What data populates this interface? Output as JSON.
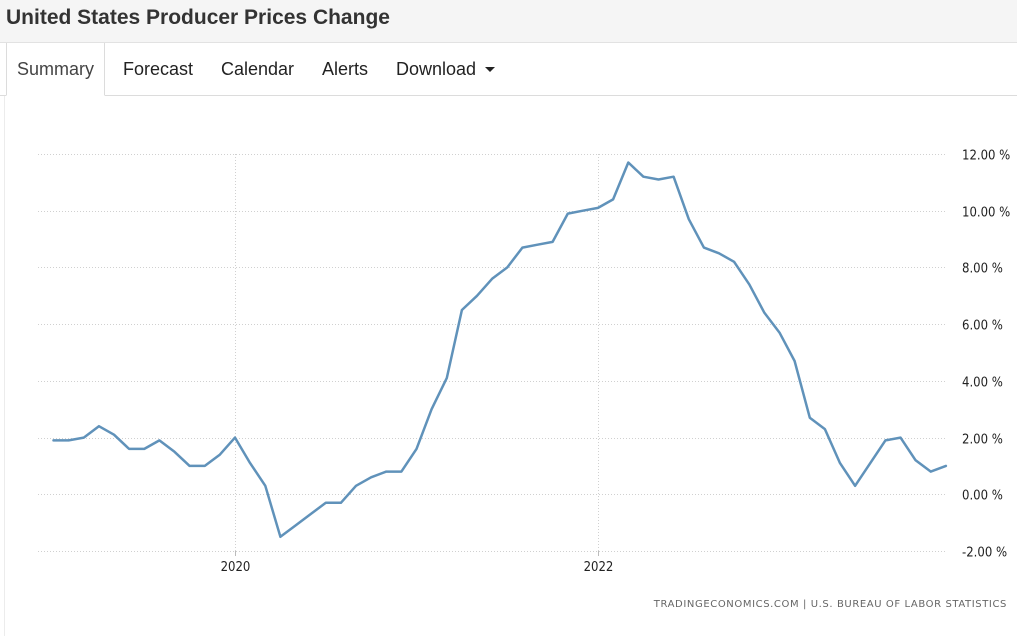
{
  "header": {
    "title": "United States Producer Prices Change"
  },
  "tabs": [
    {
      "label": "Summary",
      "active": true
    },
    {
      "label": "Forecast"
    },
    {
      "label": "Calendar"
    },
    {
      "label": "Alerts"
    },
    {
      "label": "Download",
      "has_dropdown": true
    }
  ],
  "source": "TRADINGECONOMICS.COM  |  U.S. BUREAU OF LABOR STATISTICS",
  "chart_data": {
    "type": "line",
    "line_color": "#6092ba",
    "grid": true,
    "y_axis_side": "right",
    "ylim": [
      -2,
      12
    ],
    "yticks": [
      12,
      10,
      8,
      6,
      4,
      2,
      0,
      -2
    ],
    "ytick_labels": [
      "12.00 %",
      "10.00 %",
      "8.00 %",
      "6.00 %",
      "4.00 %",
      "2.00 %",
      "0.00 %",
      "-2.00 %"
    ],
    "xticks": [
      "2020-01",
      "2022-01"
    ],
    "xtick_labels": [
      "2020",
      "2022"
    ],
    "series": [
      {
        "x": [
          "2019-01",
          "2019-02",
          "2019-03",
          "2019-04",
          "2019-05",
          "2019-06",
          "2019-07",
          "2019-08",
          "2019-09",
          "2019-10",
          "2019-11",
          "2019-12",
          "2020-01",
          "2020-02",
          "2020-03",
          "2020-04",
          "2020-05",
          "2020-06",
          "2020-07",
          "2020-08",
          "2020-09",
          "2020-10",
          "2020-11",
          "2020-12",
          "2021-01",
          "2021-02",
          "2021-03",
          "2021-04",
          "2021-05",
          "2021-06",
          "2021-07",
          "2021-08",
          "2021-09",
          "2021-10",
          "2021-11",
          "2021-12",
          "2022-01",
          "2022-02",
          "2022-03",
          "2022-04",
          "2022-05",
          "2022-06",
          "2022-07",
          "2022-08",
          "2022-09",
          "2022-10",
          "2022-11",
          "2022-12",
          "2023-01",
          "2023-02",
          "2023-03",
          "2023-04",
          "2023-05",
          "2023-06",
          "2023-07",
          "2023-08",
          "2023-09",
          "2023-10",
          "2023-11",
          "2023-12"
        ],
        "values": [
          1.9,
          1.9,
          2.0,
          2.4,
          2.1,
          1.6,
          1.6,
          1.9,
          1.5,
          1.0,
          1.0,
          1.4,
          2.0,
          1.1,
          0.3,
          -1.5,
          -1.1,
          -0.7,
          -0.3,
          -0.3,
          0.3,
          0.6,
          0.8,
          0.8,
          1.6,
          3.0,
          4.1,
          6.5,
          7.0,
          7.6,
          8.0,
          8.7,
          8.8,
          8.9,
          9.9,
          10.0,
          10.1,
          10.4,
          11.7,
          11.2,
          11.1,
          11.2,
          9.7,
          8.7,
          8.5,
          8.2,
          7.4,
          6.4,
          5.7,
          4.7,
          2.7,
          2.3,
          1.1,
          0.3,
          1.1,
          1.9,
          2.0,
          1.2,
          0.8,
          1.0
        ]
      }
    ]
  }
}
